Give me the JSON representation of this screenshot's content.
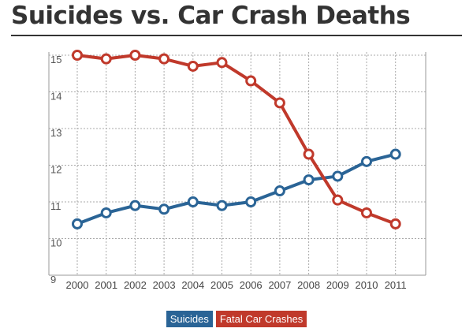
{
  "page": {
    "title": "Suicides vs. Car Crash Deaths"
  },
  "chart_data": {
    "type": "line",
    "title": "Suicides vs. Car Crash Deaths",
    "xlabel": "",
    "ylabel": "",
    "x": [
      "2000",
      "2001",
      "2002",
      "2003",
      "2004",
      "2005",
      "2006",
      "2007",
      "2008",
      "2009",
      "2010",
      "2011"
    ],
    "ylim": [
      9,
      15
    ],
    "yticks": [
      9,
      10,
      11,
      12,
      13,
      14,
      15
    ],
    "grid": true,
    "legend_position": "bottom-center",
    "series": [
      {
        "name": "Suicides",
        "color": "#2a6496",
        "values": [
          10.4,
          10.7,
          10.9,
          10.8,
          11.0,
          10.9,
          11.0,
          11.3,
          11.6,
          11.7,
          12.1,
          12.3
        ]
      },
      {
        "name": "Fatal Car Crashes",
        "color": "#c0392b",
        "values": [
          15.0,
          14.9,
          15.0,
          14.9,
          14.7,
          14.8,
          14.3,
          13.7,
          12.3,
          11.05,
          10.7,
          10.4
        ]
      }
    ]
  }
}
